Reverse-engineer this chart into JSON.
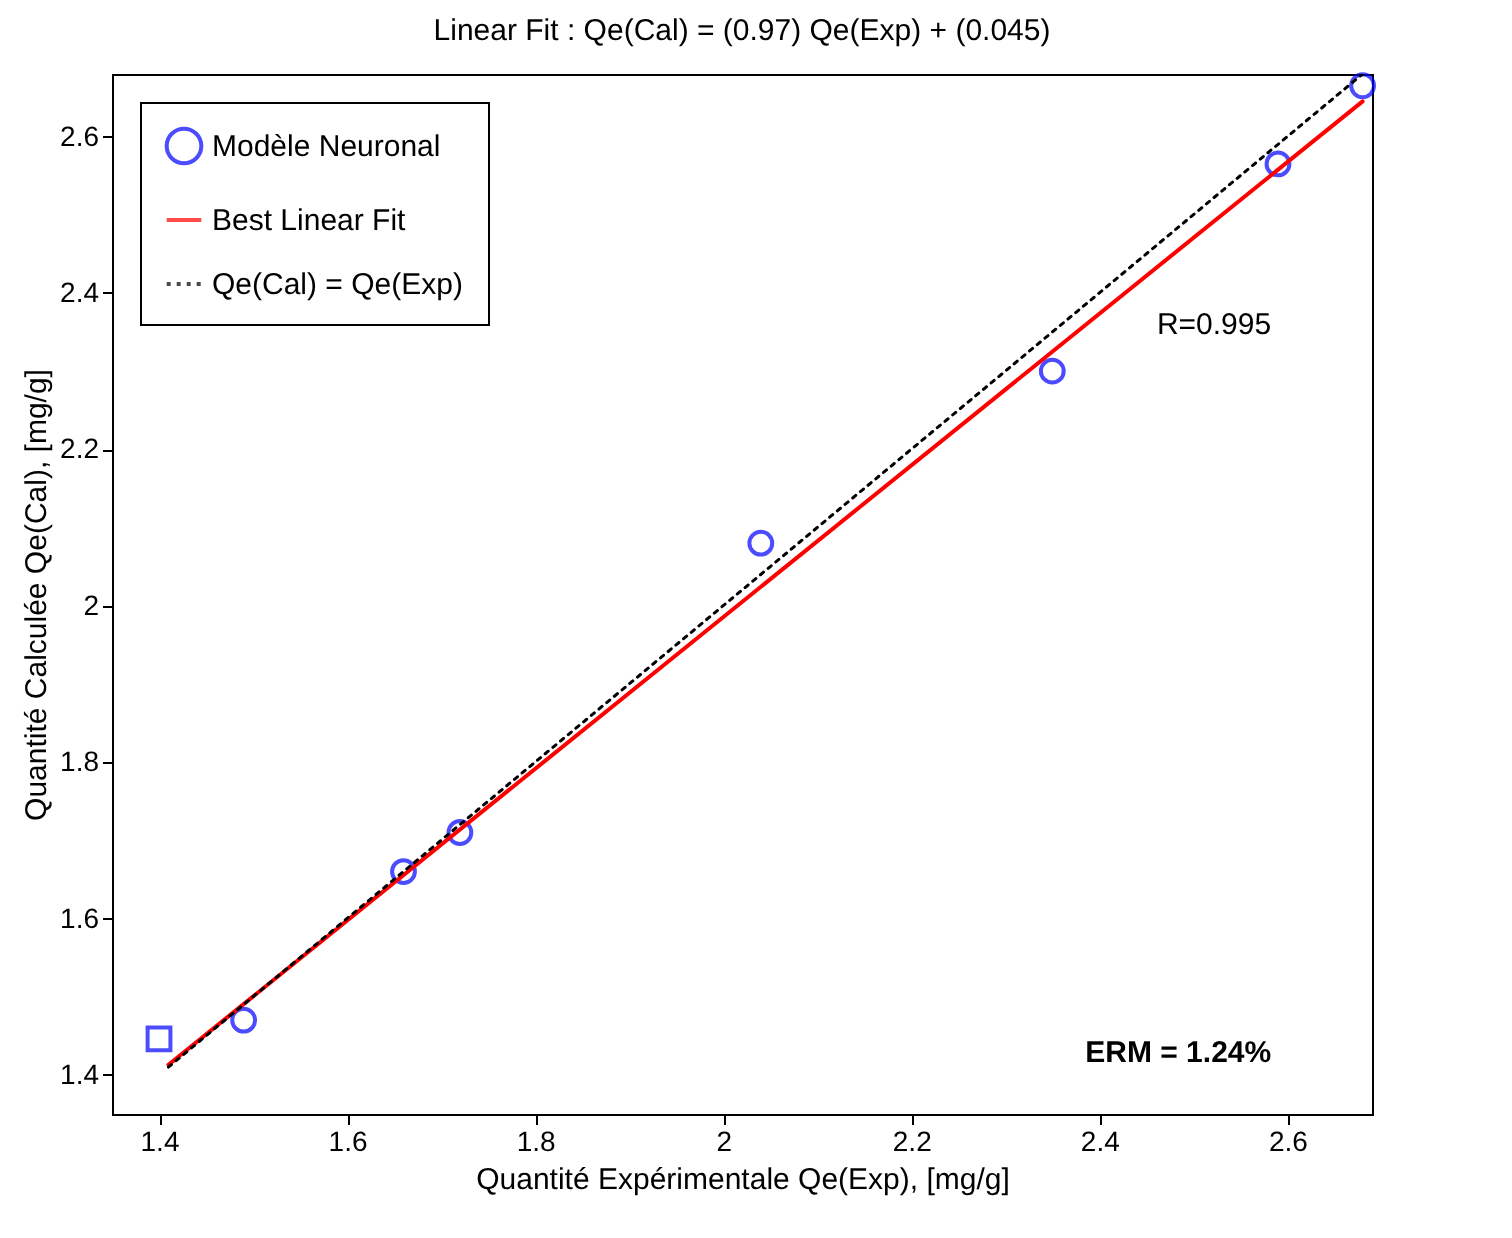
{
  "chart_data": {
    "type": "scatter",
    "title": "Linear Fit : Qe(Cal) = (0.97) Qe(Exp) + (0.045)",
    "xlabel": "Quantité Expérimentale Qe(Exp), [mg/g]",
    "ylabel": "Quantité Calculée Qe(Cal), [mg/g]",
    "xlim": [
      1.35,
      2.69
    ],
    "ylim": [
      1.35,
      2.68
    ],
    "xticks": [
      1.4,
      1.6,
      1.8,
      2,
      2.2,
      2.4,
      2.6
    ],
    "yticks": [
      1.4,
      1.6,
      1.8,
      2,
      2.2,
      2.4,
      2.6
    ],
    "grid": false,
    "legend": "top left",
    "annotations": [
      "R=0.995",
      "ERM = 1.24%"
    ],
    "series": [
      {
        "name": "Modèle Neuronal",
        "marker": "circle",
        "color": "#0000ff",
        "x": [
          1.49,
          1.66,
          1.72,
          2.04,
          2.35,
          2.59,
          2.68
        ],
        "values": [
          1.47,
          1.66,
          1.71,
          2.08,
          2.3,
          2.565,
          2.665
        ]
      },
      {
        "marker": "square",
        "color": "#0000ff",
        "x": [
          1.4
        ],
        "values": [
          1.446
        ]
      },
      {
        "name": "Best Linear Fit",
        "type": "line",
        "line_style": "solid",
        "color": "#ff0000",
        "x": [
          1.41,
          2.68
        ],
        "values": [
          1.413,
          2.645
        ]
      },
      {
        "name": "Qe(Cal) = Qe(Exp)",
        "type": "line",
        "line_style": "dotted",
        "color": "#000000",
        "x": [
          1.41,
          2.68
        ],
        "values": [
          1.41,
          2.68
        ]
      }
    ]
  }
}
